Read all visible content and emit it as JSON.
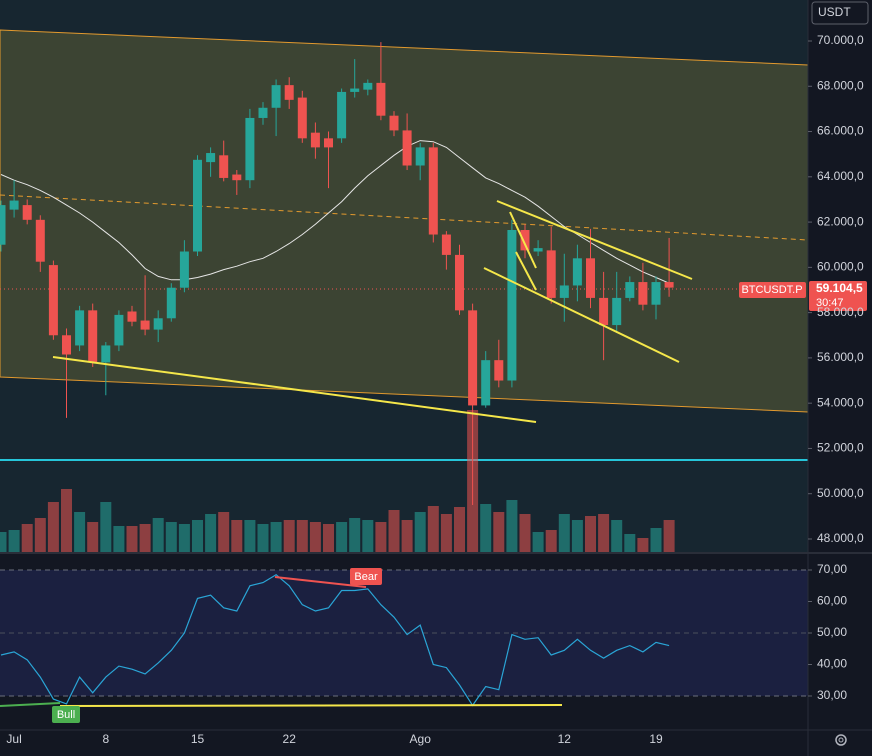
{
  "ui": {
    "currency": "USDT",
    "symbol": "BTCUSDT.P",
    "countdown": "30:47"
  },
  "chart_data": [
    {
      "type": "candlestick",
      "categories": [
        null,
        "Jul",
        null,
        null,
        null,
        null,
        null,
        null,
        "8",
        null,
        null,
        null,
        null,
        null,
        null,
        "15",
        null,
        null,
        null,
        null,
        null,
        null,
        "22",
        null,
        null,
        null,
        null,
        null,
        null,
        null,
        null,
        null,
        "Ago",
        null,
        null,
        null,
        null,
        null,
        null,
        null,
        null,
        null,
        null,
        "12",
        null,
        null,
        null,
        null,
        null,
        null,
        "19",
        null
      ],
      "open": [
        61000,
        62550,
        62750,
        62100,
        60100,
        57000,
        56550,
        58100,
        55800,
        56550,
        58050,
        57650,
        57250,
        57750,
        59100,
        60700,
        64650,
        64950,
        64100,
        63850,
        66600,
        67050,
        68050,
        67500,
        65950,
        65700,
        65700,
        67750,
        67850,
        68150,
        66700,
        66050,
        64500,
        65300,
        61450,
        60550,
        58100,
        53900,
        55900,
        55000,
        61650,
        60700,
        60750,
        58650,
        59200,
        60400,
        58650,
        57450,
        58650,
        59350,
        58350,
        59350
      ],
      "high": [
        62950,
        63850,
        63000,
        62300,
        60300,
        57300,
        58300,
        58400,
        56700,
        58100,
        58300,
        59650,
        58100,
        59300,
        61200,
        64950,
        65300,
        65600,
        64300,
        67000,
        67300,
        68300,
        68400,
        67800,
        66400,
        66000,
        67900,
        69200,
        68300,
        69950,
        66900,
        66800,
        65500,
        65500,
        61600,
        61000,
        58400,
        56300,
        56800,
        62100,
        61900,
        61200,
        61800,
        60600,
        61000,
        61700,
        59800,
        59800,
        59600,
        60200,
        59600,
        61300
      ],
      "low": [
        60700,
        62200,
        61900,
        59800,
        56800,
        53350,
        56300,
        55600,
        54350,
        56300,
        57400,
        57000,
        56700,
        57600,
        58900,
        60500,
        64000,
        63800,
        63200,
        63500,
        66300,
        65800,
        67000,
        65500,
        64800,
        63500,
        65500,
        67500,
        67600,
        66500,
        65800,
        64300,
        63850,
        61100,
        59900,
        57900,
        49500,
        53800,
        54700,
        54700,
        60400,
        60500,
        58400,
        57600,
        58500,
        58200,
        55900,
        57100,
        58500,
        58100,
        57700,
        58700
      ],
      "close": [
        62750,
        62950,
        62100,
        60250,
        57000,
        56150,
        58100,
        55800,
        56550,
        57900,
        57600,
        57250,
        57750,
        59100,
        60700,
        64750,
        65050,
        63950,
        63850,
        66600,
        67050,
        68050,
        67400,
        65700,
        65300,
        65300,
        67750,
        67900,
        68150,
        66700,
        66050,
        64500,
        65300,
        61450,
        60550,
        58100,
        53900,
        55900,
        55000,
        61650,
        60750,
        60850,
        58650,
        59200,
        60400,
        58650,
        57450,
        58650,
        59350,
        58350,
        59350,
        59104.5
      ],
      "last_label": "59.104,5",
      "volume": [
        20,
        22,
        28,
        34,
        50,
        63,
        40,
        30,
        50,
        26,
        26,
        28,
        34,
        30,
        28,
        32,
        38,
        40,
        32,
        32,
        28,
        30,
        32,
        32,
        30,
        28,
        30,
        34,
        32,
        30,
        42,
        32,
        40,
        46,
        38,
        45,
        142,
        48,
        40,
        52,
        38,
        20,
        22,
        38,
        32,
        36,
        38,
        32,
        18,
        14,
        24,
        32
      ],
      "ma": [
        64100,
        63850,
        63650,
        63400,
        63100,
        62750,
        62400,
        62000,
        61550,
        61100,
        60550,
        59950,
        59600,
        59450,
        59450,
        59550,
        59700,
        59900,
        60050,
        60250,
        60400,
        60700,
        61050,
        61450,
        61900,
        62400,
        62900,
        63500,
        64050,
        64500,
        64950,
        65350,
        65600,
        65550,
        65300,
        64850,
        64400,
        63950,
        63700,
        63400,
        63100,
        62700,
        62250,
        61800,
        61450,
        61100,
        60750,
        60400,
        60100,
        59800,
        59550,
        59300
      ],
      "up_color": "#26a69a",
      "down_color": "#ef5350",
      "ma_color": "#e6e6e6",
      "ylim": [
        47425,
        71811
      ],
      "yticks": [
        {
          "value": 48000,
          "label": "48.000,0"
        },
        {
          "value": 50000,
          "label": "50.000,0"
        },
        {
          "value": 52000,
          "label": "52.000,0"
        },
        {
          "value": 54000,
          "label": "54.000,0"
        },
        {
          "value": 56000,
          "label": "56.000,0"
        },
        {
          "value": 58000,
          "label": "58.000,0"
        },
        {
          "value": 60000,
          "label": "60.000,0"
        },
        {
          "value": 62000,
          "label": "62.000,0"
        },
        {
          "value": 64000,
          "label": "64.000,0"
        },
        {
          "value": 66000,
          "label": "66.000,0"
        },
        {
          "value": 68000,
          "label": "68.000,0"
        },
        {
          "value": 70000,
          "label": "70.000,0"
        }
      ]
    },
    {
      "type": "line",
      "values": [
        43,
        44,
        41.5,
        36,
        29,
        27.5,
        36,
        31,
        36,
        39.5,
        38.5,
        37,
        40.5,
        44.5,
        50,
        61,
        62,
        58,
        57,
        65,
        66,
        68.5,
        65,
        59,
        57,
        58,
        63.5,
        63.5,
        64,
        59,
        55,
        49.5,
        52.5,
        40,
        39,
        33.5,
        27,
        33,
        32,
        49.5,
        48,
        48.5,
        43,
        44.5,
        48,
        44.5,
        42,
        44.5,
        46,
        44,
        47,
        46
      ],
      "color": "#2aa5d6",
      "annotations": [
        "Bear",
        "Bull"
      ],
      "ylim": [
        19.2,
        75.4
      ],
      "yticks": [
        {
          "value": 30,
          "label": "30,00"
        },
        {
          "value": 40,
          "label": "40,00"
        },
        {
          "value": 50,
          "label": "50,00"
        },
        {
          "value": 60,
          "label": "60,00"
        },
        {
          "value": 70,
          "label": "70,00"
        }
      ]
    }
  ]
}
